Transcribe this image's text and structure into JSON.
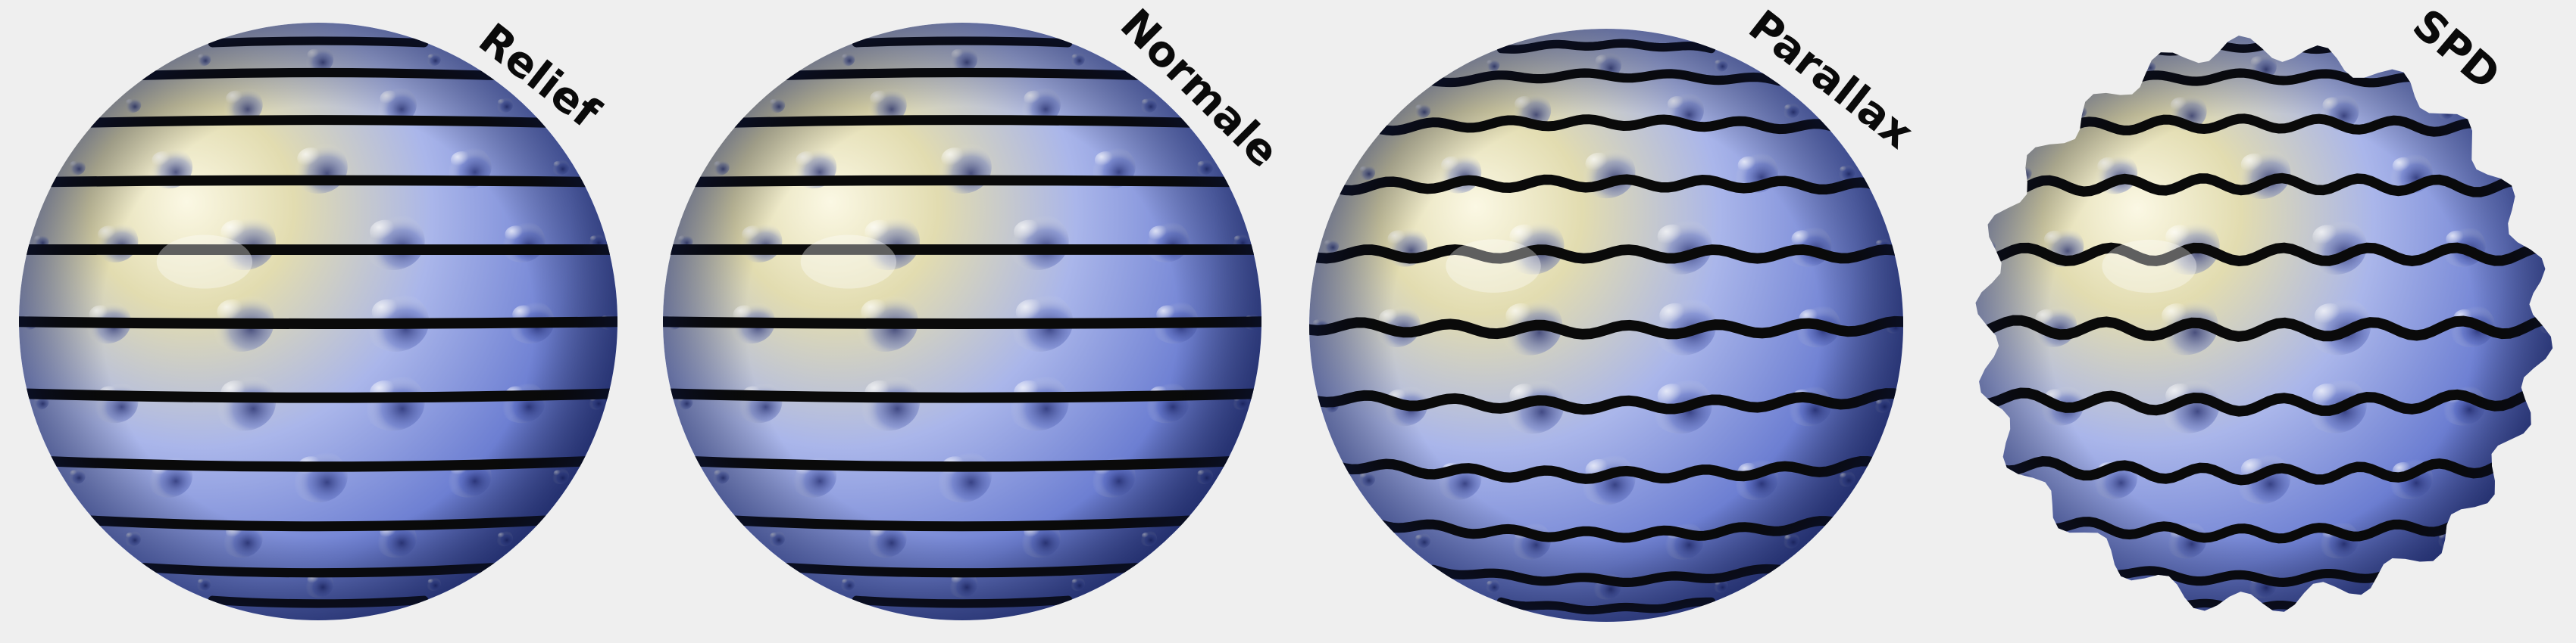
{
  "spheres": [
    {
      "id": "relief",
      "label": "Relief",
      "technique": "bump"
    },
    {
      "id": "normale",
      "label": "Normale",
      "technique": "normal"
    },
    {
      "id": "parallax",
      "label": "Parallax",
      "technique": "parallax"
    },
    {
      "id": "spd",
      "label": "SPD",
      "technique": "displacement"
    }
  ],
  "colors": {
    "background": "#efefef",
    "stripe": "#0a0a0a",
    "highlight": "#f8f5dc",
    "warm_tint": "#d9d3a2",
    "mid_blue": "#9aa9e6",
    "shadow_blue": "#1c2a66"
  }
}
